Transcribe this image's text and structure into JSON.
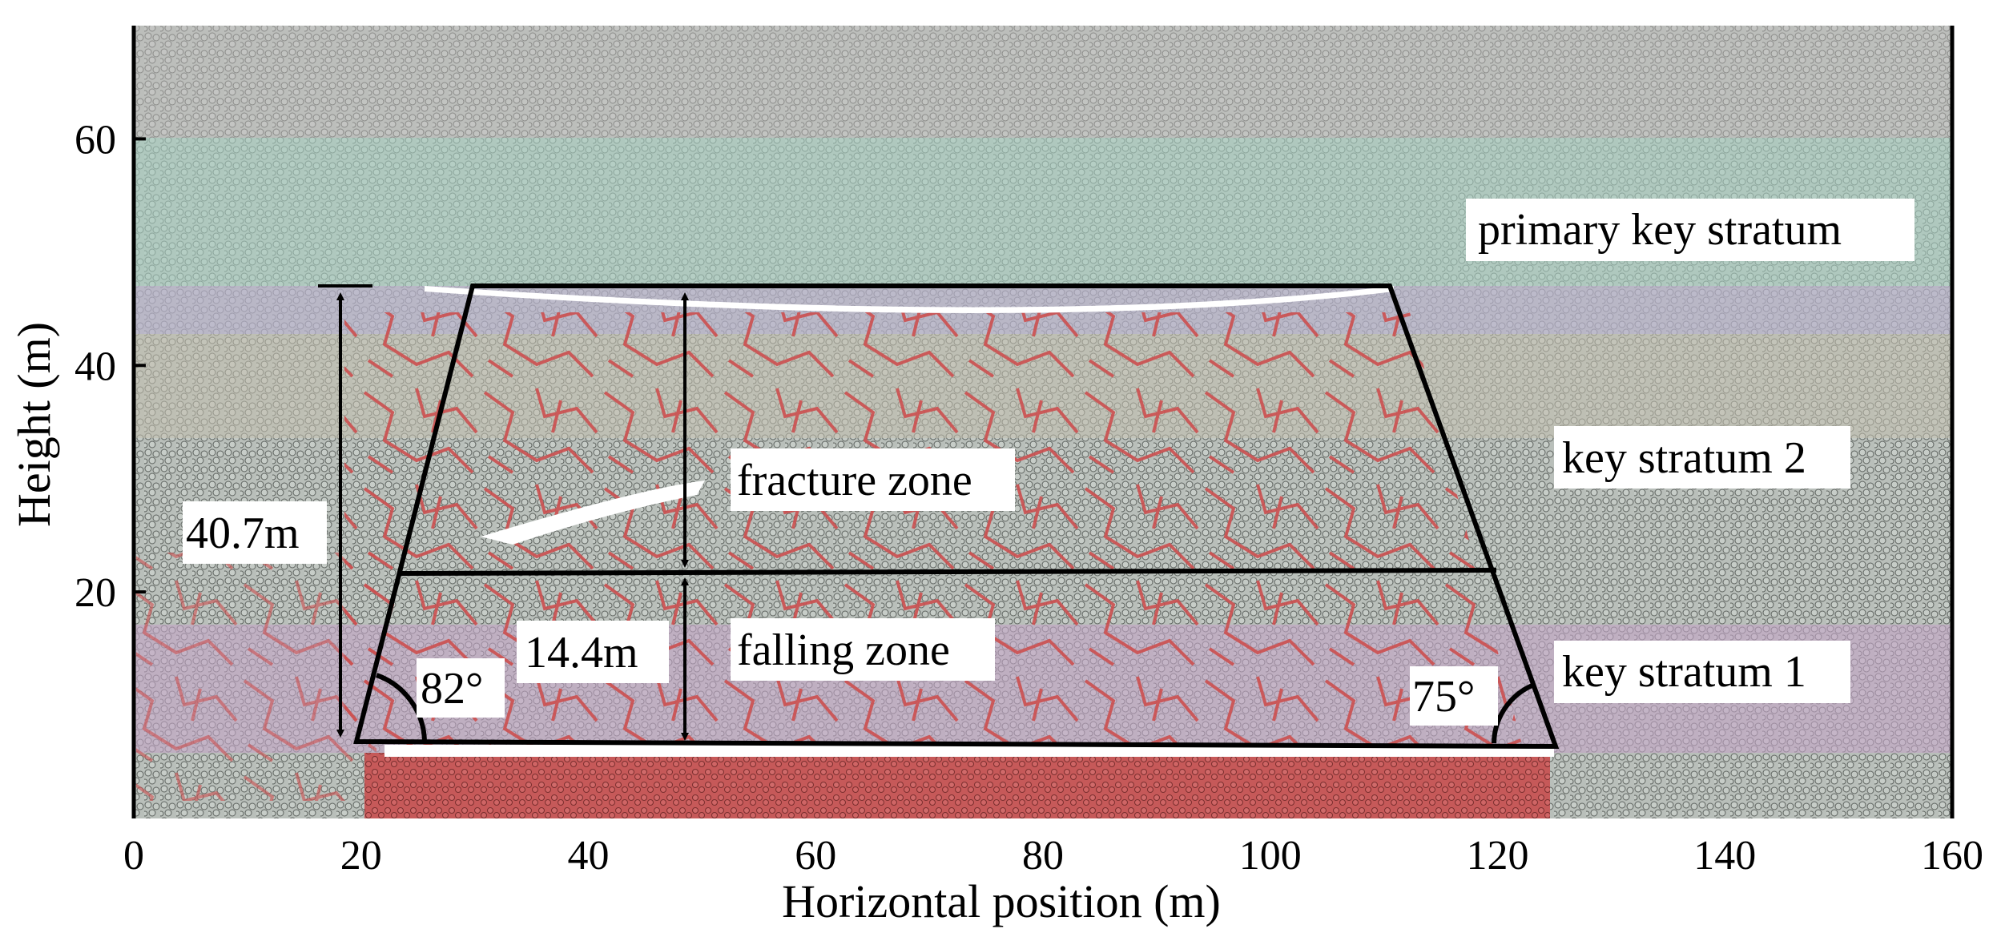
{
  "axes": {
    "x_label": "Horizontal position (m)",
    "y_label": "Height (m)",
    "x_ticks": [
      "0",
      "20",
      "40",
      "60",
      "80",
      "100",
      "120",
      "140",
      "160"
    ],
    "y_ticks": [
      "20",
      "40",
      "60"
    ],
    "x_range": [
      0,
      160
    ],
    "y_range": [
      0,
      70
    ]
  },
  "strata": {
    "primary": "primary key stratum",
    "key2": "key stratum 2",
    "key1": "key stratum 1"
  },
  "zones": {
    "fracture": "fracture zone",
    "falling": "falling zone"
  },
  "dimensions": {
    "total_height": "40.7m",
    "falling_height": "14.4m"
  },
  "angles": {
    "left": "82°",
    "right": "75°"
  },
  "colors": {
    "background_particles": "#b9bfba",
    "primary_band": "#a9cfc2",
    "key2_band": "#b9b4cc",
    "key1_band": "#c3a5c6",
    "upper_band": "#c2bcbc",
    "fracture": "#cc4f4f",
    "mid_band": "#c2bfae"
  }
}
